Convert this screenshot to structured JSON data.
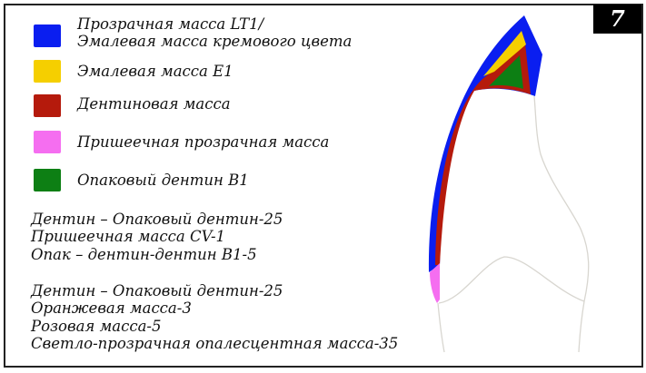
{
  "badge": "7",
  "legend": [
    {
      "color": "#0a1ef0",
      "lines": [
        "Прозрачная масса LT1/",
        "Эмалевая масса кремового цвета"
      ]
    },
    {
      "color": "#f5cf00",
      "lines": [
        "Эмалевая масса E1"
      ]
    },
    {
      "color": "#b51a0c",
      "lines": [
        "Дентиновая масса"
      ]
    },
    {
      "color": "#f56ef0",
      "lines": [
        "Пришеечная прозрачная масса"
      ]
    },
    {
      "color": "#0d7f14",
      "lines": [
        "Опаковый дентин B1"
      ]
    }
  ],
  "recipes": [
    [
      "Дентин – Опаковый дентин-25",
      "Пришеечная масса CV-1",
      "Опак – дентин-дентин B1-5"
    ],
    [
      "Дентин – Опаковый дентин-25",
      "Оранжевая масса-3",
      "Розовая масса-5",
      "Светло-прозрачная опалесцентная масса-35"
    ]
  ]
}
